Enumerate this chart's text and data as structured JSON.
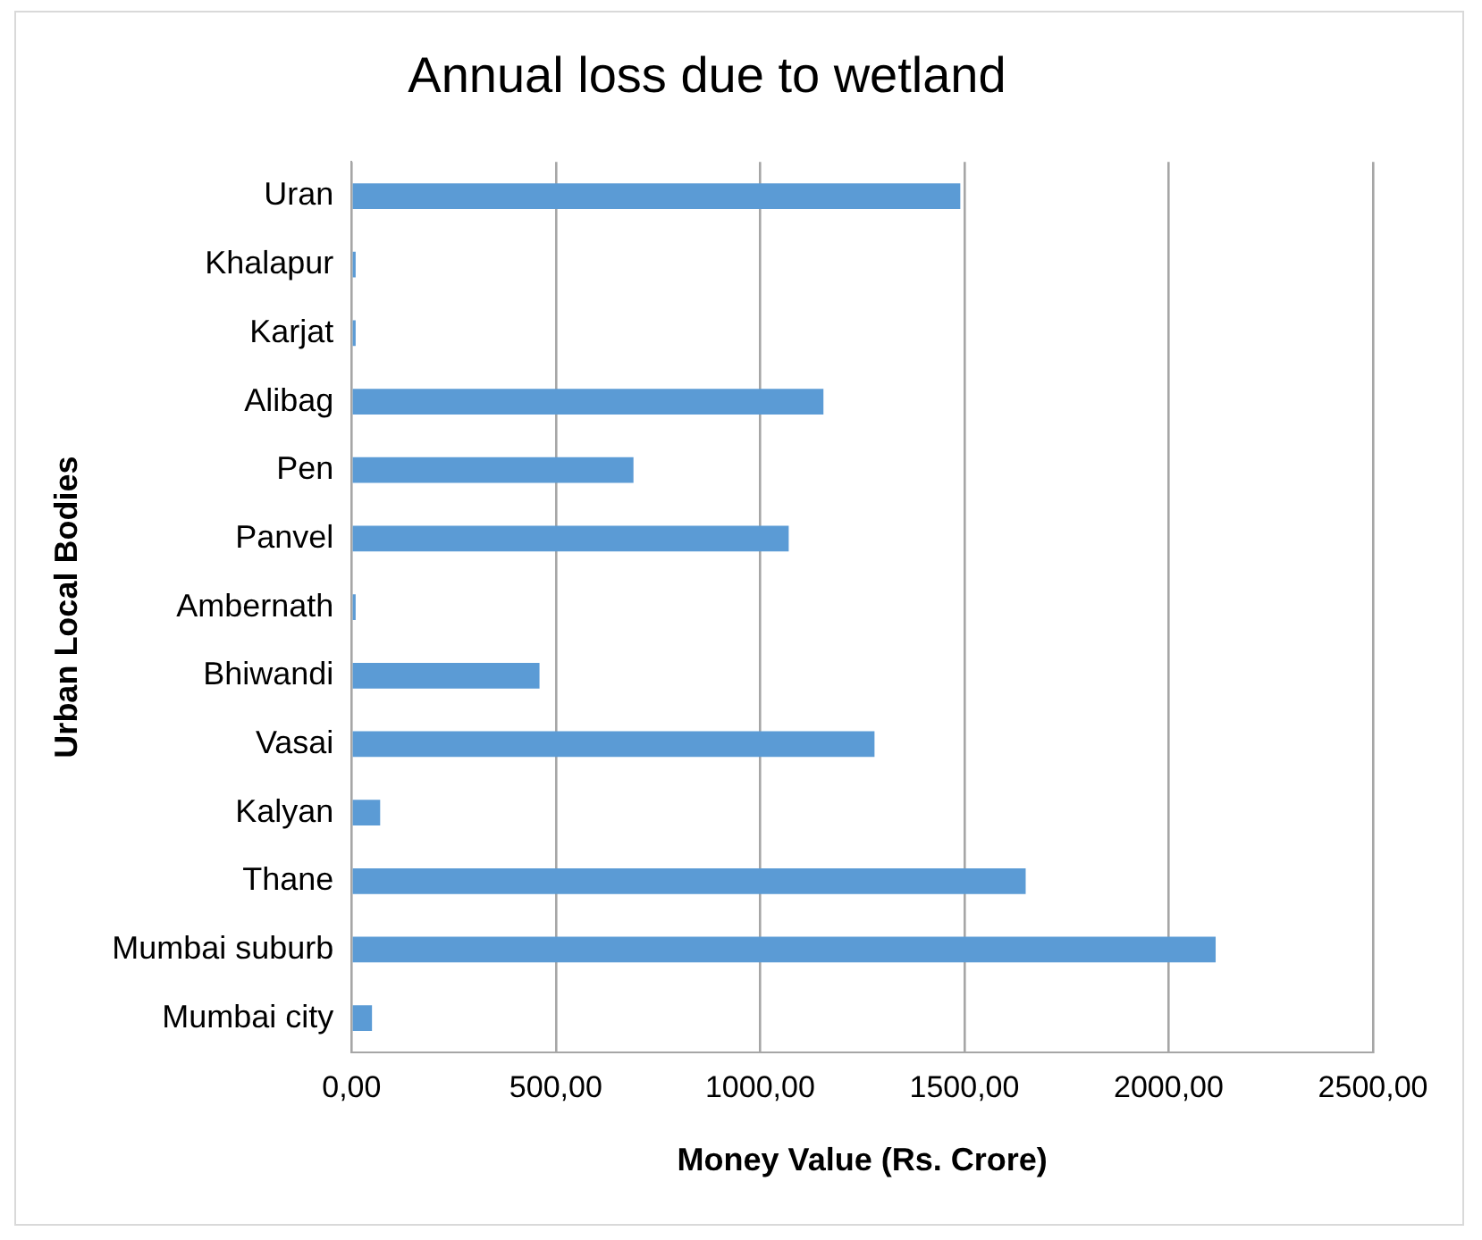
{
  "chart_data": {
    "type": "bar",
    "orientation": "horizontal",
    "title": "Annual loss due to wetland",
    "xlabel": "Money Value (Rs. Crore)",
    "ylabel": "Urban Local Bodies",
    "categories": [
      "Uran",
      "Khalapur",
      "Karjat",
      "Alibag",
      "Pen",
      "Panvel",
      "Ambernath",
      "Bhiwandi",
      "Vasai",
      "Kalyan",
      "Thane",
      "Mumbai suburb",
      "Mumbai city"
    ],
    "values": [
      1490,
      10,
      10,
      1155,
      690,
      1070,
      10,
      460,
      1280,
      70,
      1650,
      2115,
      50
    ],
    "color": "#5b9bd5",
    "xlim": [
      0,
      2500
    ],
    "xticks": [
      {
        "value": 0,
        "label": "0,00"
      },
      {
        "value": 500,
        "label": "500,00"
      },
      {
        "value": 1000,
        "label": "1000,00"
      },
      {
        "value": 1500,
        "label": "1500,00"
      },
      {
        "value": 2000,
        "label": "2000,00"
      },
      {
        "value": 2500,
        "label": "2500,00"
      }
    ],
    "grid": "x",
    "legend": false
  }
}
